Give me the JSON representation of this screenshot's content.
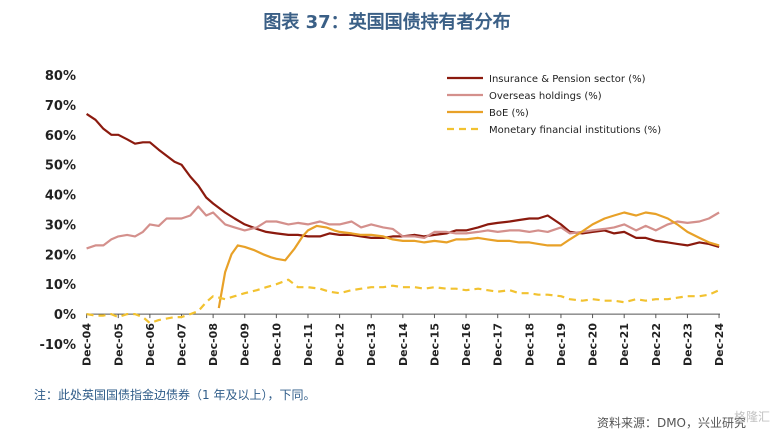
{
  "title": "图表 37：英国国债持有者分布",
  "note": "注：此处英国国债指金边债券（1 年及以上），下同。",
  "source": "资料来源：DMO，兴业研究",
  "logo": "格隆汇",
  "chart_data": {
    "type": "line",
    "title": "图表 37：英国国债持有者分布",
    "xlabel": "",
    "ylabel": "",
    "ylim": [
      -10,
      80
    ],
    "yticks": [
      -10,
      0,
      10,
      20,
      30,
      40,
      50,
      60,
      70,
      80
    ],
    "ytick_labels": [
      "-10%",
      "0%",
      "10%",
      "20%",
      "30%",
      "40%",
      "50%",
      "60%",
      "70%",
      "80%"
    ],
    "xlim": [
      2004.9,
      2024.95
    ],
    "xticks": [
      2004.92,
      2005.92,
      2006.92,
      2007.92,
      2008.92,
      2009.92,
      2010.92,
      2011.92,
      2012.92,
      2013.92,
      2014.92,
      2015.92,
      2016.92,
      2017.92,
      2018.92,
      2019.92,
      2020.92,
      2021.92,
      2022.92,
      2023.92,
      2024.92
    ],
    "xtick_labels": [
      "Dec-04",
      "Dec-05",
      "Dec-06",
      "Dec-07",
      "Dec-08",
      "Dec-09",
      "Dec-10",
      "Dec-11",
      "Dec-12",
      "Dec-13",
      "Dec-14",
      "Dec-15",
      "Dec-16",
      "Dec-17",
      "Dec-18",
      "Dec-19",
      "Dec-20",
      "Dec-21",
      "Dec-22",
      "Dec-23",
      "Dec-24"
    ],
    "grid": false,
    "legend_position": "top-right",
    "series": [
      {
        "name": "Insurance & Pension sector (%)",
        "color": "#8b1a0e",
        "style": "solid",
        "x": [
          2004.92,
          2005.2,
          2005.45,
          2005.7,
          2005.92,
          2006.2,
          2006.45,
          2006.7,
          2006.92,
          2007.2,
          2007.45,
          2007.7,
          2007.92,
          2008.2,
          2008.45,
          2008.7,
          2008.92,
          2009.3,
          2009.6,
          2009.92,
          2010.3,
          2010.6,
          2010.92,
          2011.3,
          2011.6,
          2011.92,
          2012.3,
          2012.6,
          2012.92,
          2013.3,
          2013.6,
          2013.92,
          2014.3,
          2014.6,
          2014.92,
          2015.3,
          2015.6,
          2015.92,
          2016.3,
          2016.6,
          2016.92,
          2017.3,
          2017.6,
          2017.92,
          2018.3,
          2018.6,
          2018.92,
          2019.2,
          2019.5,
          2019.92,
          2020.2,
          2020.6,
          2020.92,
          2021.3,
          2021.6,
          2021.92,
          2022.3,
          2022.6,
          2022.92,
          2023.3,
          2023.6,
          2023.92,
          2024.3,
          2024.6,
          2024.92
        ],
        "y": [
          67,
          65,
          62,
          60,
          60,
          58.5,
          57,
          57.5,
          57.5,
          55,
          53,
          51,
          50,
          46,
          43,
          39,
          37,
          34,
          32,
          30,
          28.5,
          27.5,
          27,
          26.5,
          26.5,
          26,
          26,
          27,
          26.5,
          26.5,
          26,
          25.5,
          25.5,
          26,
          26,
          26.5,
          26,
          26.5,
          27,
          28,
          28,
          29,
          30,
          30.5,
          31,
          31.5,
          32,
          32,
          33,
          30,
          27.5,
          27,
          27.5,
          28,
          27,
          27.5,
          25.5,
          25.5,
          24.5,
          24,
          23.5,
          23,
          24,
          23.5,
          22.5
        ]
      },
      {
        "name": "Overseas holdings (%)",
        "color": "#d4908c",
        "style": "solid",
        "x": [
          2004.92,
          2005.2,
          2005.45,
          2005.7,
          2005.92,
          2006.2,
          2006.45,
          2006.7,
          2006.92,
          2007.2,
          2007.45,
          2007.7,
          2007.92,
          2008.2,
          2008.45,
          2008.7,
          2008.92,
          2009.3,
          2009.6,
          2009.92,
          2010.3,
          2010.6,
          2010.92,
          2011.3,
          2011.6,
          2011.92,
          2012.3,
          2012.6,
          2012.92,
          2013.3,
          2013.6,
          2013.92,
          2014.3,
          2014.6,
          2014.92,
          2015.3,
          2015.6,
          2015.92,
          2016.3,
          2016.6,
          2016.92,
          2017.3,
          2017.6,
          2017.92,
          2018.3,
          2018.6,
          2018.92,
          2019.2,
          2019.5,
          2019.92,
          2020.2,
          2020.6,
          2020.92,
          2021.3,
          2021.6,
          2021.92,
          2022.3,
          2022.6,
          2022.92,
          2023.3,
          2023.6,
          2023.92,
          2024.3,
          2024.6,
          2024.92
        ],
        "y": [
          22,
          23,
          23,
          25,
          26,
          26.5,
          26,
          27.5,
          30,
          29.5,
          32,
          32,
          32,
          33,
          36,
          33,
          34,
          30,
          29,
          28,
          29,
          31,
          31,
          30,
          30.5,
          30,
          31,
          30,
          30,
          31,
          29,
          30,
          29,
          28.5,
          26,
          26,
          25.5,
          27.5,
          27.5,
          27,
          27,
          27.5,
          28,
          27.5,
          28,
          28,
          27.5,
          28,
          27.5,
          29,
          27,
          27.5,
          28,
          28.5,
          29,
          30,
          28,
          29.5,
          28,
          30,
          31,
          30.5,
          31,
          32,
          34
        ]
      },
      {
        "name": "BoE (%)",
        "color": "#e8a128",
        "style": "solid",
        "x": [
          2009.1,
          2009.3,
          2009.5,
          2009.7,
          2009.92,
          2010.2,
          2010.5,
          2010.75,
          2010.92,
          2011.2,
          2011.5,
          2011.75,
          2011.92,
          2012.2,
          2012.5,
          2012.75,
          2012.92,
          2013.3,
          2013.6,
          2013.92,
          2014.3,
          2014.6,
          2014.92,
          2015.3,
          2015.6,
          2015.92,
          2016.3,
          2016.6,
          2016.92,
          2017.3,
          2017.6,
          2017.92,
          2018.3,
          2018.6,
          2018.92,
          2019.2,
          2019.5,
          2019.92,
          2020.2,
          2020.5,
          2020.92,
          2021.3,
          2021.6,
          2021.92,
          2022.3,
          2022.6,
          2022.92,
          2023.3,
          2023.6,
          2023.92,
          2024.3,
          2024.6,
          2024.92
        ],
        "y": [
          2,
          14,
          20,
          23,
          22.5,
          21.5,
          20,
          19,
          18.5,
          18,
          22,
          26,
          28,
          29.5,
          29,
          28,
          27.5,
          27,
          26.5,
          26.5,
          26,
          25,
          24.5,
          24.5,
          24,
          24.5,
          24,
          25,
          25,
          25.5,
          25,
          24.5,
          24.5,
          24,
          24,
          23.5,
          23,
          23,
          25,
          27,
          30,
          32,
          33,
          34,
          33,
          34,
          33.5,
          32,
          30,
          27.5,
          25.5,
          24,
          23
        ]
      },
      {
        "name": "Monetary financial institutions (%)",
        "color": "#f2c230",
        "style": "dashed",
        "x": [
          2004.92,
          2005.2,
          2005.45,
          2005.7,
          2005.92,
          2006.2,
          2006.45,
          2006.7,
          2006.92,
          2007.2,
          2007.45,
          2007.7,
          2007.92,
          2008.2,
          2008.45,
          2008.7,
          2008.92,
          2009.3,
          2009.6,
          2009.92,
          2010.3,
          2010.6,
          2010.92,
          2011.3,
          2011.6,
          2011.92,
          2012.3,
          2012.6,
          2012.92,
          2013.3,
          2013.6,
          2013.92,
          2014.3,
          2014.6,
          2014.92,
          2015.3,
          2015.6,
          2015.92,
          2016.3,
          2016.6,
          2016.92,
          2017.3,
          2017.6,
          2017.92,
          2018.3,
          2018.6,
          2018.92,
          2019.2,
          2019.5,
          2019.92,
          2020.2,
          2020.6,
          2020.92,
          2021.3,
          2021.6,
          2021.92,
          2022.3,
          2022.6,
          2022.92,
          2023.3,
          2023.6,
          2023.92,
          2024.3,
          2024.6,
          2024.92
        ],
        "y": [
          0,
          -0.5,
          -0.5,
          0,
          -1,
          0,
          0,
          -1,
          -3,
          -2,
          -1.5,
          -1,
          -1,
          0,
          1,
          4,
          6,
          5,
          6,
          7,
          8,
          9,
          10,
          11.5,
          9,
          9,
          8.5,
          7.5,
          7,
          8,
          8.5,
          9,
          9,
          9.5,
          9,
          9,
          8.5,
          9,
          8.5,
          8.5,
          8,
          8.5,
          8,
          7.5,
          8,
          7,
          7,
          6.5,
          6.5,
          6,
          5,
          4.5,
          5,
          4.5,
          4.5,
          4,
          5,
          4.5,
          5,
          5,
          5.5,
          6,
          6,
          6.5,
          8
        ]
      }
    ]
  }
}
